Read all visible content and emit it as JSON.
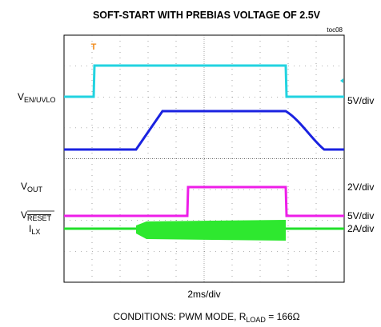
{
  "header": {
    "title": "SOFT-START  WITH PREBIAS VOLTAGE OF 2.5V",
    "figure_id": "toc08"
  },
  "channels": [
    {
      "label": "V",
      "label_sub": "EN/UVLO",
      "scale": "5V/div"
    },
    {
      "label": "V",
      "label_sub": "OUT",
      "scale": "2V/div"
    },
    {
      "label": "V",
      "label_sub": "RESET",
      "scale": "5V/div"
    },
    {
      "label": "I",
      "label_sub": "LX",
      "scale": "2A/div"
    }
  ],
  "timebase": "2ms/div",
  "conditions": {
    "prefix": "CONDITIONS: PWM MODE, R",
    "sub": "LOAD",
    "suffix": " = 166Ω"
  }
}
